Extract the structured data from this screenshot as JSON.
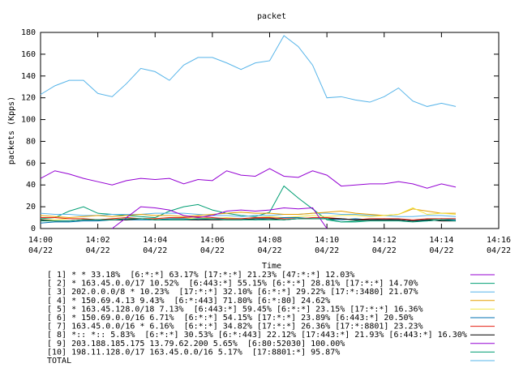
{
  "chart_data": {
    "type": "line",
    "title": "packet",
    "x_label": "Time",
    "y_label": "packets (Kpps)",
    "x": [
      0,
      0.5,
      1,
      1.5,
      2,
      2.5,
      3,
      3.5,
      4,
      4.5,
      5,
      5.5,
      6,
      6.5,
      7,
      7.5,
      8,
      8.5,
      9,
      9.5,
      10,
      10.5,
      11,
      11.5,
      12,
      12.5,
      13,
      13.5,
      14,
      14.5
    ],
    "xlim": [
      0,
      16
    ],
    "xticks": [
      {
        "value": 0,
        "label": "14:00"
      },
      {
        "value": 2,
        "label": "14:02"
      },
      {
        "value": 4,
        "label": "14:04"
      },
      {
        "value": 6,
        "label": "14:06"
      },
      {
        "value": 8,
        "label": "14:08"
      },
      {
        "value": 10,
        "label": "14:10"
      },
      {
        "value": 12,
        "label": "14:12"
      },
      {
        "value": 14,
        "label": "14:14"
      },
      {
        "value": 16,
        "label": "14:16"
      }
    ],
    "xtick_dates": [
      "04/22",
      "04/22",
      "04/22",
      "04/22",
      "04/22",
      "04/22",
      "04/22",
      "04/22",
      "04/22"
    ],
    "ylim": [
      0,
      180
    ],
    "yticks": [
      0,
      20,
      40,
      60,
      80,
      100,
      120,
      140,
      160,
      180
    ],
    "grid": false,
    "series": [
      {
        "name": "[ 1] * * 33.18%  [6:*:*] 63.17% [17:*:*] 21.23% [47:*:*] 12.03%",
        "color": "#9400d3",
        "values": [
          46,
          53,
          50,
          46,
          43,
          40,
          44,
          46,
          45,
          46,
          41,
          45,
          44,
          53,
          49,
          48,
          55,
          48,
          47,
          53,
          49,
          39,
          40,
          41,
          41,
          43,
          41,
          37,
          41,
          38
        ]
      },
      {
        "name": "[ 2] * 163.45.0.0/17 10.52%  [6:443:*] 55.15% [6:*:*] 28.81% [17:*:*] 14.70%",
        "color": "#009e73",
        "values": [
          9,
          10,
          16,
          20,
          14,
          13,
          12,
          11,
          10,
          16,
          20,
          22,
          17,
          14,
          12,
          11,
          15,
          39,
          28,
          18,
          8,
          6,
          7,
          8,
          9,
          8,
          7,
          8,
          9,
          8
        ]
      },
      {
        "name": "[ 3] 202.0.0.0/8 * 10.23%  [17:*:*] 32.10% [6:*:*] 29.22% [17:*:3480] 21.07%",
        "color": "#56b4e9",
        "values": [
          14,
          13,
          13,
          12,
          12,
          13,
          13,
          13,
          14,
          14,
          14,
          13,
          12,
          12,
          11,
          12,
          12,
          13,
          13,
          14,
          14,
          13,
          13,
          12,
          12,
          11,
          11,
          12,
          12,
          11
        ]
      },
      {
        "name": "[ 4] * 150.69.4.13 9.43%  [6:*:443] 71.80% [6:*:80] 24.62%",
        "color": "#e69f00",
        "values": [
          12,
          11,
          10,
          11,
          12,
          11,
          12,
          13,
          12,
          12,
          11,
          12,
          13,
          14,
          15,
          14,
          14,
          13,
          13,
          14,
          15,
          16,
          14,
          13,
          12,
          13,
          18,
          16,
          14,
          14
        ]
      },
      {
        "name": "[ 5] * 163.45.128.0/18 7.13%  [6:443:*] 59.45% [6:*:*] 23.15% [17:*:*] 16.36%",
        "color": "#f0e442",
        "values": [
          8,
          8,
          9,
          9,
          8,
          9,
          10,
          9,
          9,
          10,
          9,
          10,
          9,
          10,
          9,
          10,
          11,
          10,
          11,
          12,
          11,
          12,
          12,
          11,
          12,
          13,
          19,
          13,
          14,
          13
        ]
      },
      {
        "name": "[ 6] * 150.69.0.0/16 6.71%  [6:*:*] 54.15% [17:*:*] 23.89% [6:443:*] 20.50%",
        "color": "#0072b2",
        "values": [
          5,
          6,
          6,
          7,
          7,
          8,
          8,
          8,
          8,
          9,
          9,
          8,
          9,
          9,
          9,
          8,
          9,
          10,
          10,
          9,
          9,
          8,
          9,
          8,
          8,
          8,
          7,
          7,
          8,
          8
        ]
      },
      {
        "name": "[ 7] 163.45.0.0/16 * 6.16%  [6:*:*] 34.82% [17:*:*] 26.36% [17:*:8801] 23.23%",
        "color": "#e51e10",
        "values": [
          10,
          10,
          9,
          9,
          8,
          9,
          10,
          9,
          9,
          10,
          10,
          11,
          10,
          9,
          9,
          10,
          10,
          9,
          9,
          10,
          10,
          9,
          8,
          9,
          9,
          9,
          8,
          9,
          9,
          9
        ]
      },
      {
        "name": "[ 8] *:: *:: 5.83%  [6:*:*] 30.53% [6:*:443] 22.12% [17:443:*] 21.93% [6:443:*] 16.30%",
        "color": "#000000",
        "values": [
          8,
          7,
          7,
          8,
          8,
          8,
          8,
          9,
          8,
          8,
          8,
          8,
          8,
          8,
          8,
          9,
          9,
          8,
          9,
          9,
          9,
          9,
          8,
          8,
          8,
          8,
          7,
          8,
          7,
          7
        ]
      },
      {
        "name": "[ 9] 203.188.185.175 13.79.62.200 5.65%  [6:80:52030] 100.00%",
        "color": "#9400d3",
        "values": [
          null,
          null,
          null,
          null,
          null,
          0,
          10,
          20,
          19,
          17,
          12,
          10,
          12,
          16,
          17,
          16,
          17,
          19,
          18,
          19,
          0,
          null,
          null,
          null,
          null,
          null,
          null,
          null,
          null,
          null
        ]
      },
      {
        "name": "[10] 198.11.128.0/17 163.45.0.0/16 5.17%  [17:8801:*] 95.87%",
        "color": "#009e73",
        "values": [
          7,
          7,
          7,
          8,
          8,
          8,
          9,
          9,
          8,
          8,
          8,
          9,
          9,
          8,
          8,
          8,
          8,
          8,
          9,
          9,
          9,
          6,
          6,
          7,
          7,
          7,
          6,
          7,
          8,
          7
        ]
      },
      {
        "name": "TOTAL",
        "color": "#56b4e9",
        "values": [
          123,
          131,
          136,
          136,
          124,
          121,
          133,
          147,
          144,
          136,
          150,
          157,
          157,
          152,
          146,
          152,
          154,
          177,
          167,
          150,
          120,
          121,
          118,
          116,
          121,
          129,
          117,
          112,
          115,
          112
        ]
      }
    ]
  }
}
